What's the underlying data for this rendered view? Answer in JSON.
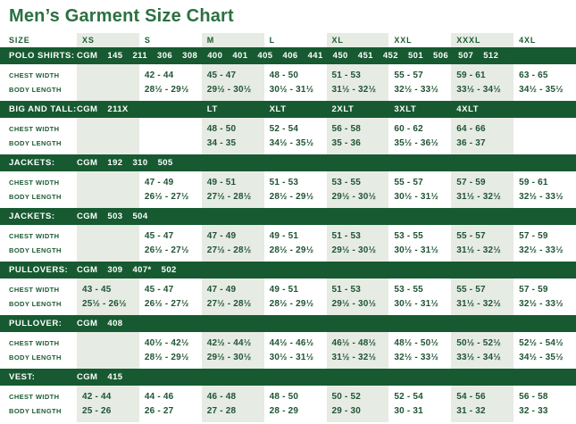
{
  "title": "Men’s Garment Size Chart",
  "colors": {
    "bar_green": "#175a31",
    "title_green": "#2b7041",
    "label_green": "#1d5c33",
    "value_green": "#1f5433",
    "stripe": "#e6ebe3"
  },
  "header": {
    "columns": [
      "SIZE",
      "XS",
      "S",
      "M",
      "L",
      "XL",
      "XXL",
      "XXXL",
      "4XL"
    ]
  },
  "labels": {
    "chest": "CHEST WIDTH",
    "body": "BODY LENGTH"
  },
  "sections": [
    {
      "name": "POLO SHIRTS:",
      "codes": "CGM 145 211 306 308 400 401 405 406 441 450 451 452 501 506 507 512",
      "chest": [
        "",
        "42 - 44",
        "45 - 47",
        "48 - 50",
        "51 - 53",
        "55 - 57",
        "59 - 61",
        "63 - 65"
      ],
      "body": [
        "",
        "28½ - 29½",
        "29½ - 30½",
        "30½ - 31½",
        "31½ - 32½",
        "32½ - 33½",
        "33½ - 34½",
        "34½ - 35½"
      ]
    },
    {
      "name": "BIG AND TALL:",
      "codes": "CGM 211X",
      "bar_sizes": [
        "LT",
        "XLT",
        "2XLT",
        "3XLT",
        "4XLT"
      ],
      "chest": [
        "",
        "",
        "48 - 50",
        "52 - 54",
        "56 - 58",
        "60 - 62",
        "64 - 66",
        ""
      ],
      "body": [
        "",
        "",
        "34 - 35",
        "34½ - 35½",
        "35 - 36",
        "35½ - 36½",
        "36 - 37",
        ""
      ]
    },
    {
      "name": "JACKETS:",
      "codes": "CGM 192 310 505",
      "chest": [
        "",
        "47 - 49",
        "49 - 51",
        "51 - 53",
        "53 - 55",
        "55 - 57",
        "57 - 59",
        "59 - 61"
      ],
      "body": [
        "",
        "26½ - 27½",
        "27½ - 28½",
        "28½ - 29½",
        "29½ - 30½",
        "30½ - 31½",
        "31½ - 32½",
        "32½ - 33½"
      ]
    },
    {
      "name": "JACKETS:",
      "codes": "CGM 503 504",
      "chest": [
        "",
        "45 - 47",
        "47 - 49",
        "49 - 51",
        "51 - 53",
        "53 - 55",
        "55 - 57",
        "57 - 59"
      ],
      "body": [
        "",
        "26½ - 27½",
        "27½ - 28½",
        "28½ - 29½",
        "29½ - 30½",
        "30½ - 31½",
        "31½ - 32½",
        "32½ - 33½"
      ]
    },
    {
      "name": "PULLOVERS:",
      "codes": "CGM 309 407* 502",
      "chest": [
        "43 - 45",
        "45 - 47",
        "47 - 49",
        "49 - 51",
        "51 - 53",
        "53 - 55",
        "55 - 57",
        "57 - 59"
      ],
      "body": [
        "25½ - 26½",
        "26½ - 27½",
        "27½ - 28½",
        "28½ - 29½",
        "29½ - 30½",
        "30½ - 31½",
        "31½ - 32½",
        "32½ - 33½"
      ]
    },
    {
      "name": "PULLOVER:",
      "codes": "CGM 408",
      "chest": [
        "",
        "40½ - 42½",
        "42½ - 44½",
        "44½ - 46½",
        "46½ - 48½",
        "48½ - 50½",
        "50½ - 52½",
        "52½ - 54½"
      ],
      "body": [
        "",
        "28½ - 29½",
        "29½ - 30½",
        "30½ - 31½",
        "31½ - 32½",
        "32½ - 33½",
        "33½ - 34½",
        "34½ - 35½"
      ]
    },
    {
      "name": "VEST:",
      "codes": "CGM 415",
      "chest": [
        "42 - 44",
        "44 - 46",
        "46 - 48",
        "48 - 50",
        "50 - 52",
        "52 - 54",
        "54 - 56",
        "56 - 58"
      ],
      "body": [
        "25 - 26",
        "26 - 27",
        "27 - 28",
        "28 - 29",
        "29 - 30",
        "30 - 31",
        "31 - 32",
        "32 - 33"
      ]
    }
  ]
}
